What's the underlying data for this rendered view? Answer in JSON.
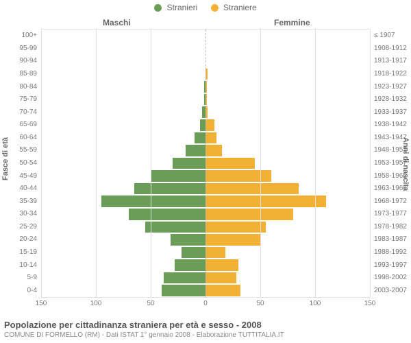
{
  "legend": {
    "male": {
      "label": "Stranieri",
      "color": "#6a9e58"
    },
    "female": {
      "label": "Straniere",
      "color": "#f2b134"
    }
  },
  "headers": {
    "male": "Maschi",
    "female": "Femmine"
  },
  "axis_titles": {
    "left": "Fasce di età",
    "right": "Anni di nascita"
  },
  "grid_color": "#e0e0e0",
  "background_color": "#ffffff",
  "tick_fontsize": 10,
  "label_fontsize": 10,
  "x": {
    "max": 150,
    "ticks_left": [
      150,
      100,
      50,
      0
    ],
    "ticks_right": [
      0,
      50,
      100,
      150
    ]
  },
  "rows": [
    {
      "age": "100+",
      "birth": "≤ 1907",
      "m": 0,
      "f": 0
    },
    {
      "age": "95-99",
      "birth": "1908-1912",
      "m": 0,
      "f": 0
    },
    {
      "age": "90-94",
      "birth": "1913-1917",
      "m": 0,
      "f": 0
    },
    {
      "age": "85-89",
      "birth": "1918-1922",
      "m": 0,
      "f": 2
    },
    {
      "age": "80-84",
      "birth": "1923-1927",
      "m": 1,
      "f": 1
    },
    {
      "age": "75-79",
      "birth": "1928-1932",
      "m": 1,
      "f": 1
    },
    {
      "age": "70-74",
      "birth": "1933-1937",
      "m": 3,
      "f": 2
    },
    {
      "age": "65-69",
      "birth": "1938-1942",
      "m": 5,
      "f": 8
    },
    {
      "age": "60-64",
      "birth": "1943-1947",
      "m": 10,
      "f": 10
    },
    {
      "age": "55-59",
      "birth": "1948-1952",
      "m": 18,
      "f": 15
    },
    {
      "age": "50-54",
      "birth": "1953-1957",
      "m": 30,
      "f": 45
    },
    {
      "age": "45-49",
      "birth": "1958-1962",
      "m": 50,
      "f": 60
    },
    {
      "age": "40-44",
      "birth": "1963-1967",
      "m": 65,
      "f": 85
    },
    {
      "age": "35-39",
      "birth": "1968-1972",
      "m": 95,
      "f": 110
    },
    {
      "age": "30-34",
      "birth": "1973-1977",
      "m": 70,
      "f": 80
    },
    {
      "age": "25-29",
      "birth": "1978-1982",
      "m": 55,
      "f": 55
    },
    {
      "age": "20-24",
      "birth": "1983-1987",
      "m": 32,
      "f": 50
    },
    {
      "age": "15-19",
      "birth": "1988-1992",
      "m": 22,
      "f": 18
    },
    {
      "age": "10-14",
      "birth": "1993-1997",
      "m": 28,
      "f": 30
    },
    {
      "age": "5-9",
      "birth": "1998-2002",
      "m": 38,
      "f": 28
    },
    {
      "age": "0-4",
      "birth": "2003-2007",
      "m": 40,
      "f": 32
    }
  ],
  "title": "Popolazione per cittadinanza straniera per età e sesso - 2008",
  "subtitle": "COMUNE DI FORMELLO (RM) - Dati ISTAT 1° gennaio 2008 - Elaborazione TUTTITALIA.IT"
}
